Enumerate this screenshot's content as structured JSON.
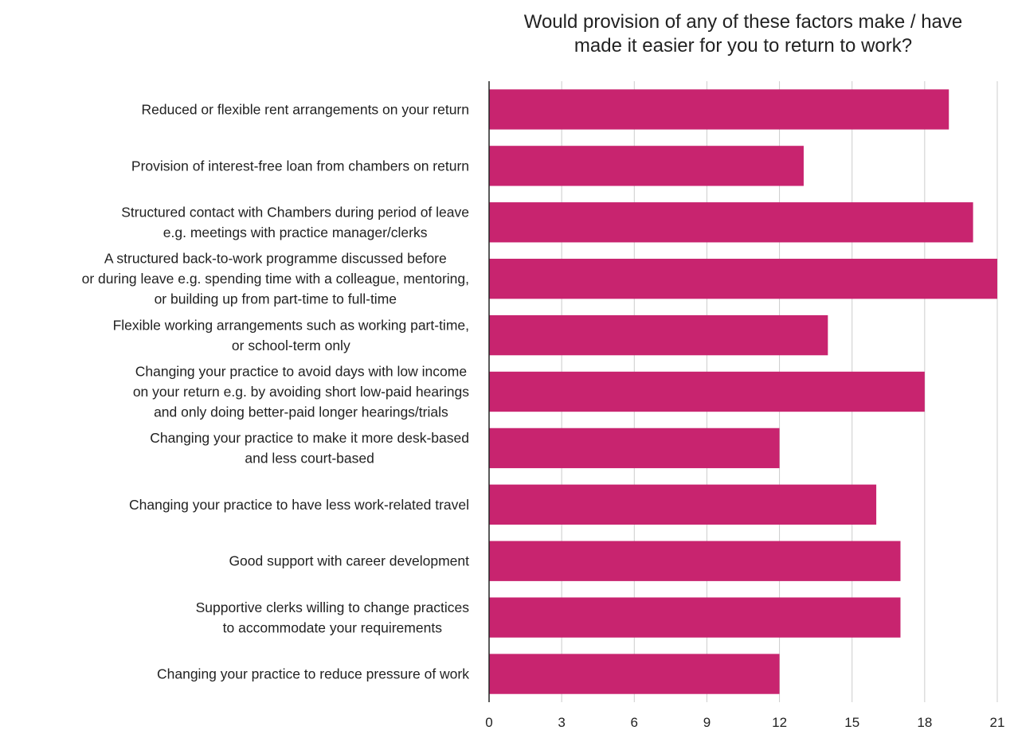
{
  "chart_data": {
    "type": "bar",
    "orientation": "horizontal",
    "title": [
      "Would provision of any of these factors make / have",
      "made it easier for you to return to work?"
    ],
    "categories": [
      [
        "Reduced or flexible rent arrangements on your return"
      ],
      [
        "Provision of interest-free loan from chambers on return"
      ],
      [
        "Structured contact with Chambers during period of leave",
        "e.g. meetings with practice manager/clerks"
      ],
      [
        "A structured back-to-work programme discussed before",
        "or during leave e.g. spending time with a colleague, mentoring,",
        "or building up from part-time to full-time"
      ],
      [
        "Flexible working arrangements such as working part-time,",
        "or school-term only"
      ],
      [
        "Changing your practice to avoid days with low income",
        "on your return e.g. by avoiding short low-paid hearings",
        "and only doing better-paid longer hearings/trials"
      ],
      [
        "Changing your practice to make it more desk-based",
        "and less court-based"
      ],
      [
        "Changing your practice to have less work-related travel"
      ],
      [
        "Good support with career development"
      ],
      [
        "Supportive clerks willing to change practices",
        "to accommodate your requirements"
      ],
      [
        "Changing your practice to reduce pressure of work"
      ]
    ],
    "values": [
      19,
      13,
      20,
      21,
      14,
      18,
      12,
      16,
      17,
      17,
      12
    ],
    "xlim": [
      0,
      21
    ],
    "xticks": [
      "0",
      "3",
      "6",
      "9",
      "12",
      "15",
      "18",
      "21"
    ],
    "xlabel": "",
    "ylabel": "",
    "bar_color": "#c8246f",
    "grid": true
  }
}
